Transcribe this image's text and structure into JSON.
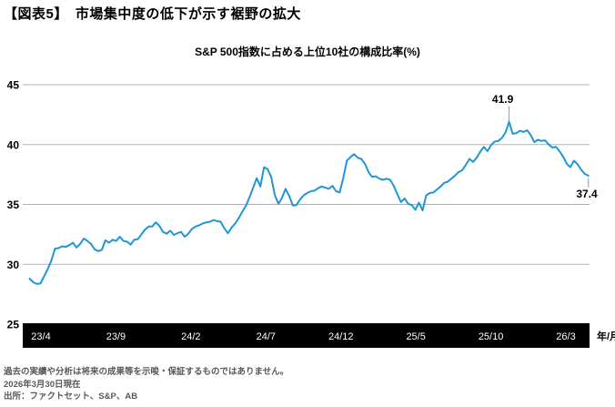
{
  "page": {
    "title": "【図表5】　市場集中度の低下が示す裾野の拡大"
  },
  "chart_data": {
    "type": "line",
    "title": "S&P 500指数に占める上位10社の構成比率(%)",
    "x_axis_label": "年/月",
    "x_tick_months": [
      0,
      5,
      10,
      15,
      20,
      25,
      30,
      35
    ],
    "x_tick_labels": [
      "23/4",
      "23/9",
      "24/2",
      "24/7",
      "24/12",
      "25/5",
      "25/10",
      "26/3"
    ],
    "y_ticks": [
      25,
      30,
      35,
      40,
      45
    ],
    "ylim": [
      25,
      45
    ],
    "grid": "horizontal",
    "line_color": "#2196d3",
    "gridline_color": "#b3b3b3",
    "axis_bar_color": "#000000",
    "leader_color": "#999999",
    "t_start": -0.75,
    "t_end": 36.5,
    "values": [
      28.8,
      28.5,
      28.35,
      28.4,
      29.0,
      29.6,
      30.3,
      31.3,
      31.35,
      31.5,
      31.45,
      31.6,
      31.8,
      31.4,
      31.7,
      32.15,
      31.95,
      31.7,
      31.25,
      31.1,
      31.2,
      32.0,
      31.8,
      32.05,
      31.95,
      32.3,
      31.95,
      31.9,
      31.65,
      32.05,
      32.1,
      32.5,
      32.9,
      33.15,
      33.15,
      33.5,
      33.2,
      32.7,
      32.55,
      32.8,
      32.45,
      32.6,
      32.7,
      32.3,
      32.55,
      32.95,
      33.15,
      33.25,
      33.4,
      33.5,
      33.55,
      33.7,
      33.6,
      33.55,
      33.0,
      32.6,
      33.05,
      33.4,
      33.85,
      34.4,
      34.9,
      35.6,
      36.4,
      37.2,
      36.5,
      38.1,
      37.95,
      37.3,
      35.8,
      35.05,
      35.55,
      36.3,
      35.7,
      34.9,
      34.95,
      35.4,
      35.75,
      35.95,
      36.1,
      36.15,
      36.35,
      36.5,
      36.4,
      36.3,
      36.55,
      36.1,
      36.0,
      37.2,
      38.65,
      38.95,
      39.2,
      38.9,
      38.8,
      38.4,
      37.7,
      37.3,
      37.35,
      37.15,
      37.05,
      37.15,
      37.05,
      36.55,
      35.85,
      35.2,
      35.5,
      35.05,
      34.95,
      34.55,
      35.15,
      34.5,
      35.75,
      35.95,
      36.0,
      36.25,
      36.5,
      36.8,
      36.9,
      37.15,
      37.4,
      37.7,
      37.85,
      38.3,
      38.8,
      38.55,
      38.9,
      39.4,
      39.8,
      39.45,
      39.95,
      40.25,
      40.3,
      40.55,
      41.0,
      41.9,
      40.9,
      40.95,
      41.15,
      41.05,
      41.2,
      40.8,
      40.2,
      40.4,
      40.3,
      40.35,
      40.0,
      39.75,
      39.8,
      39.45,
      39.0,
      38.4,
      38.1,
      38.65,
      38.35,
      37.9,
      37.55,
      37.4
    ],
    "annotations": [
      {
        "label": "41.9",
        "type": "max"
      },
      {
        "label": "37.4",
        "type": "last"
      }
    ]
  },
  "footer": {
    "disclaimer": "過去の実績や分析は将来の成果等を示唆・保証するものではありません。",
    "as_of": "2026年3月30日現在",
    "source": "出所：ファクトセット、S&P、AB"
  }
}
